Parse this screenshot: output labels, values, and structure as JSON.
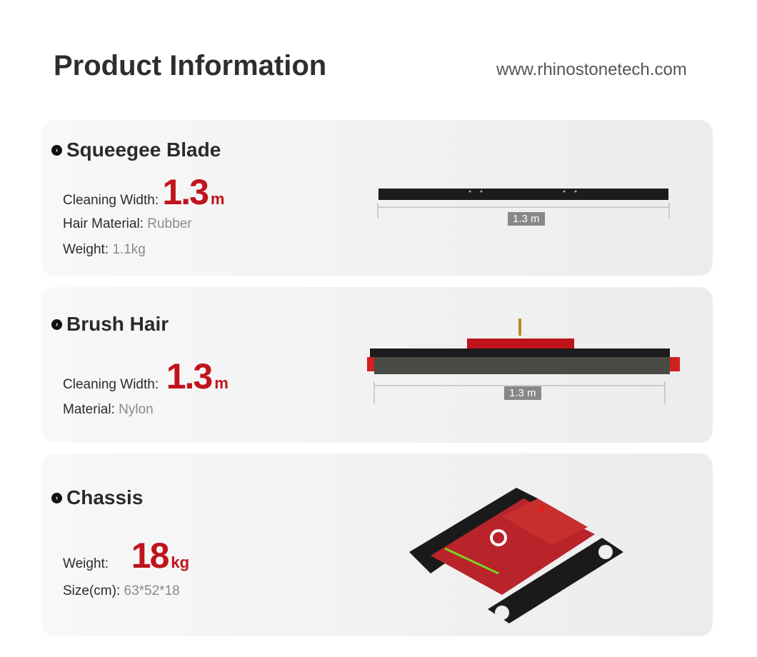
{
  "header": {
    "title": "Product Information",
    "url": "www.rhinostonetech.com"
  },
  "colors": {
    "accent": "#c0141c"
  },
  "cards": [
    {
      "title": "Squeegee Blade",
      "width_label": "Cleaning Width:",
      "width_value": "1.3",
      "width_unit": "m",
      "material_label": "Hair Material:",
      "material_value": "Rubber",
      "weight_label": "Weight:",
      "weight_value": "1.1kg",
      "dimension": "1.3 m"
    },
    {
      "title": "Brush Hair",
      "width_label": "Cleaning Width:",
      "width_value": "1.3",
      "width_unit": "m",
      "material_label": "Material:",
      "material_value": "Nylon",
      "dimension": "1.3 m"
    },
    {
      "title": "Chassis",
      "weight_label": "Weight:",
      "weight_value": "18",
      "weight_unit": "kg",
      "size_label": "Size(cm):",
      "size_value": "63*52*18"
    }
  ]
}
